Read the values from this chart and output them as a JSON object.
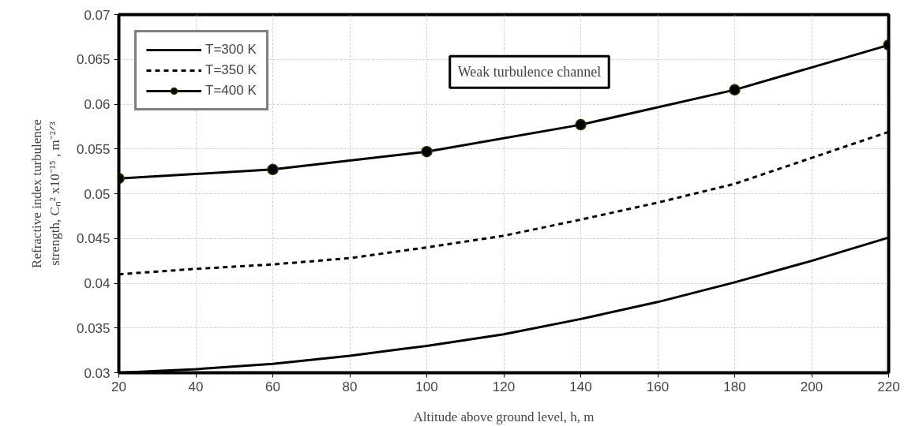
{
  "chart_data": {
    "type": "line",
    "xlabel": "Altitude above ground level, h, m",
    "ylabel": "Refractive index turbulence\nstrength, Cₙ² x10⁻¹⁵ , m⁻²ᐟ³",
    "x": [
      20,
      40,
      60,
      80,
      100,
      120,
      140,
      160,
      180,
      200,
      220
    ],
    "series": [
      {
        "name": "T=300 K",
        "color": "#000000",
        "line_style": "solid",
        "marker": "none",
        "values": [
          0.03,
          0.0304,
          0.031,
          0.0319,
          0.033,
          0.0343,
          0.036,
          0.0379,
          0.0401,
          0.0425,
          0.0451
        ]
      },
      {
        "name": "T=350 K",
        "color": "#000000",
        "line_style": "dashed",
        "marker": "none",
        "values": [
          0.041,
          0.0416,
          0.0421,
          0.0428,
          0.044,
          0.0453,
          0.0471,
          0.049,
          0.0511,
          0.054,
          0.0569
        ]
      },
      {
        "name": "T=400 K",
        "color": "#000000",
        "line_style": "solid",
        "marker": "circle",
        "x": [
          20,
          60,
          100,
          140,
          180,
          220
        ],
        "values": [
          0.0517,
          0.0527,
          0.0547,
          0.0577,
          0.0616,
          0.0666
        ]
      }
    ],
    "xlim": [
      20,
      220
    ],
    "ylim": [
      0.03,
      0.07
    ],
    "xticks": [
      20,
      40,
      60,
      80,
      100,
      120,
      140,
      160,
      180,
      200,
      220
    ],
    "yticks": [
      0.03,
      0.035,
      0.04,
      0.045,
      0.05,
      0.055,
      0.06,
      0.065,
      0.07
    ],
    "grid": true,
    "legend": "top left",
    "annotations": [
      "Weak turbulence channel"
    ]
  }
}
